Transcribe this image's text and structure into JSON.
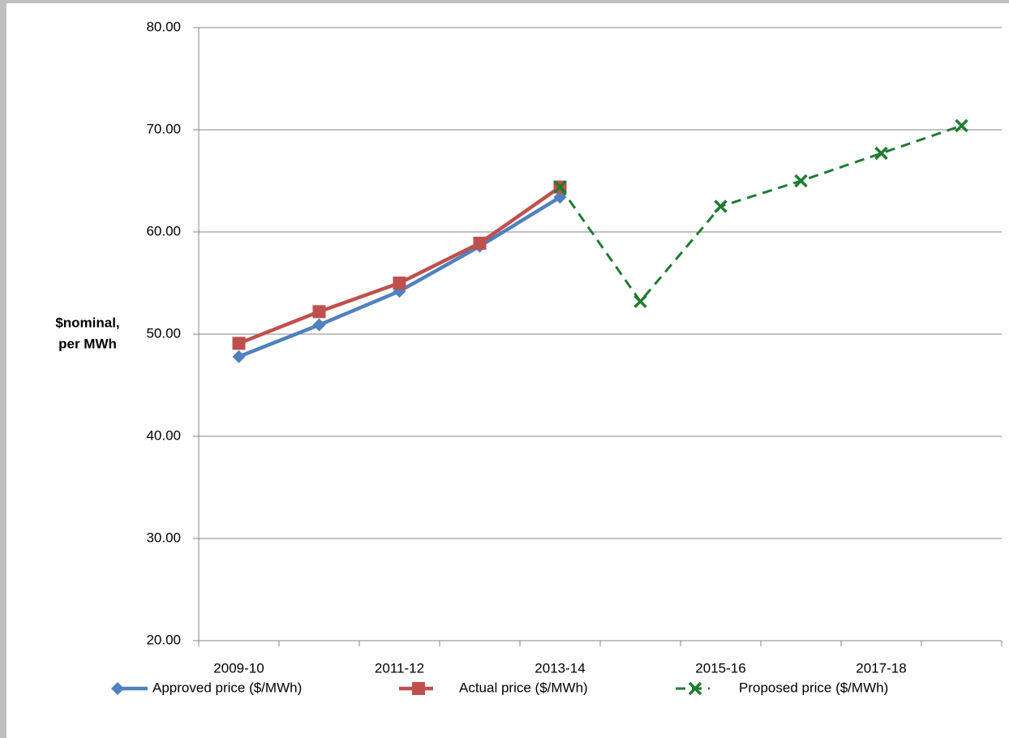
{
  "chart_data": {
    "type": "line",
    "ylabel": [
      "$nominal,",
      "per MWh"
    ],
    "categories": [
      "2009-10",
      null,
      "2011-12",
      null,
      "2013-14",
      null,
      "2015-16",
      null,
      "2017-18",
      null
    ],
    "series": [
      {
        "name": "Approved price ($/MWh)",
        "color": "#4f81bd",
        "marker": "diamond",
        "dashed": false,
        "values": [
          47.8,
          50.9,
          54.2,
          58.6,
          63.4,
          null,
          null,
          null,
          null,
          null
        ]
      },
      {
        "name": "Actual price ($/MWh)",
        "color": "#c0504d",
        "marker": "square",
        "dashed": false,
        "values": [
          49.1,
          52.2,
          55.0,
          58.9,
          64.4,
          null,
          null,
          null,
          null,
          null
        ]
      },
      {
        "name": "Proposed price ($/MWh)",
        "color": "#1e7b30",
        "marker": "x",
        "dashed": true,
        "values": [
          null,
          null,
          null,
          null,
          64.4,
          53.2,
          62.5,
          65.0,
          67.7,
          70.4
        ]
      }
    ],
    "ylim": [
      20,
      80
    ],
    "yticks": [
      {
        "value": 20,
        "label": "20.00"
      },
      {
        "value": 30,
        "label": "30.00"
      },
      {
        "value": 40,
        "label": "40.00"
      },
      {
        "value": 50,
        "label": "50.00"
      },
      {
        "value": 60,
        "label": "60.00"
      },
      {
        "value": 70,
        "label": "70.00"
      },
      {
        "value": 80,
        "label": "80.00"
      }
    ],
    "grid": true,
    "legend": "bottom"
  }
}
